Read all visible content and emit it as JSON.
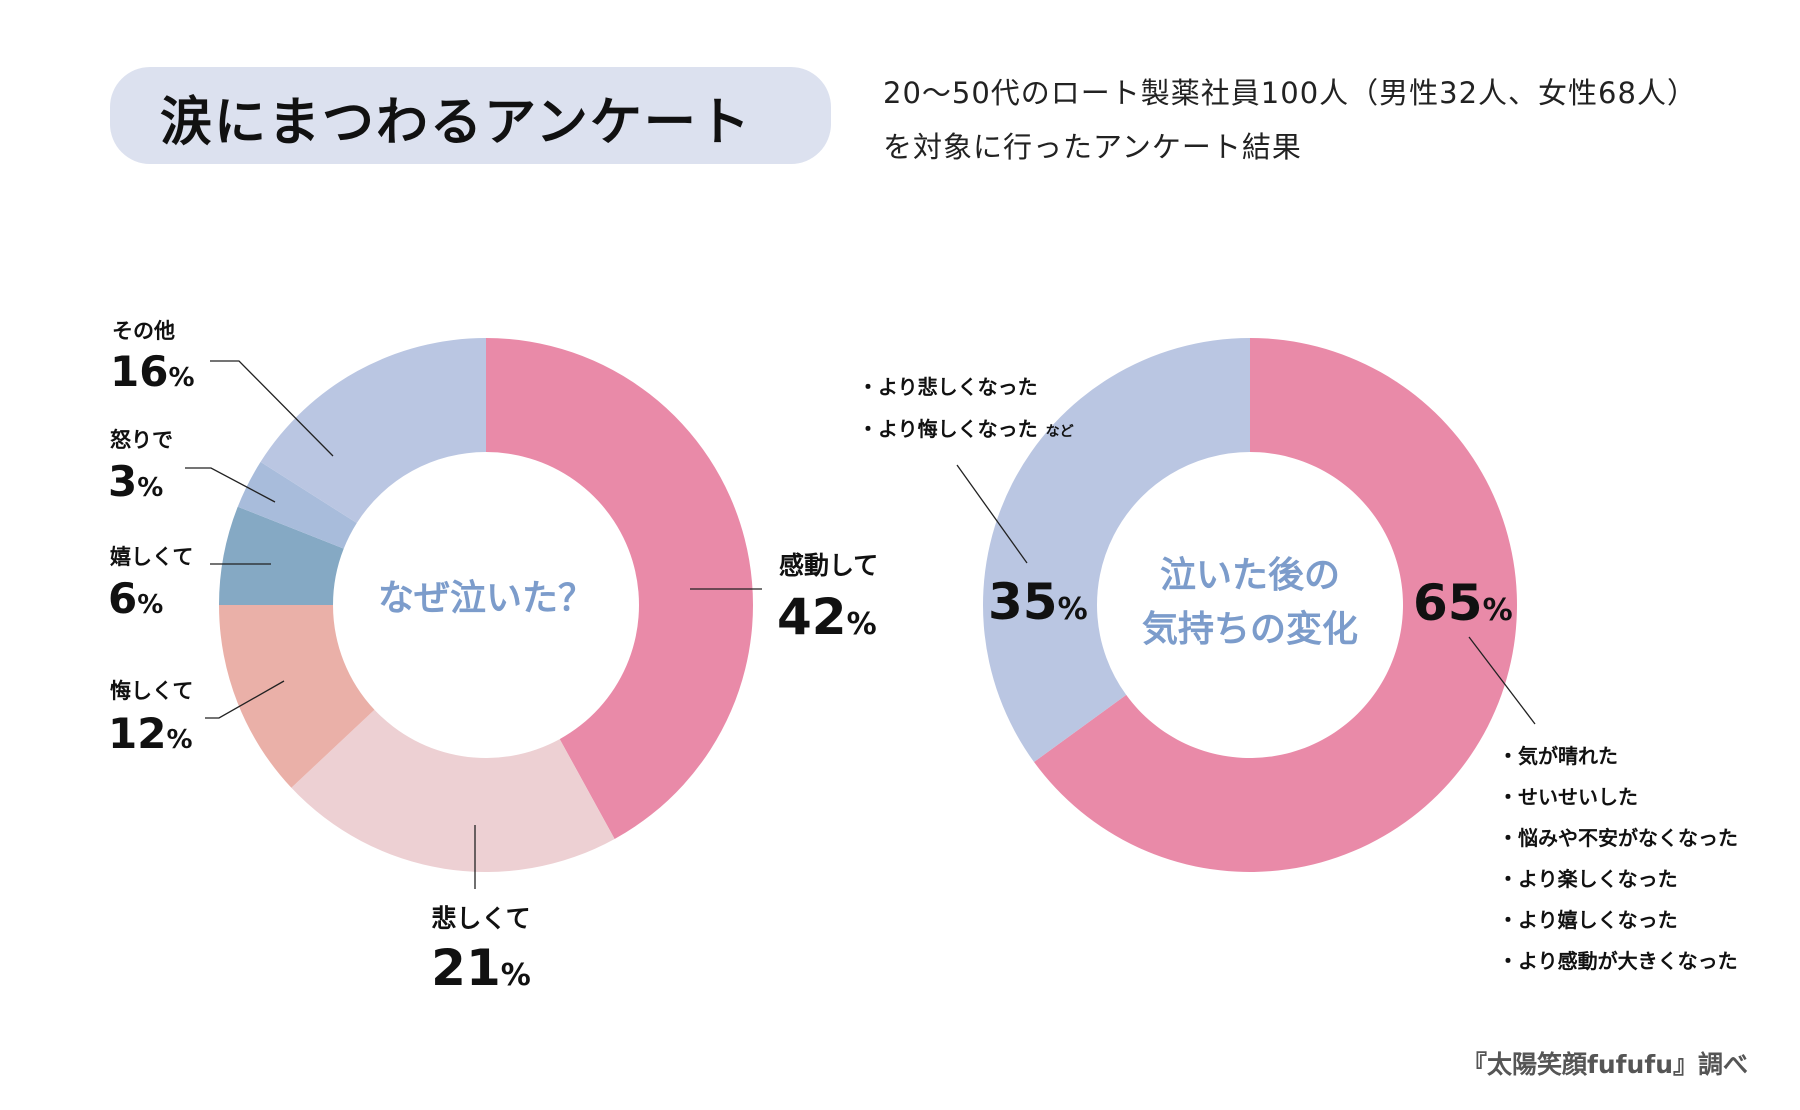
{
  "header": {
    "title": "涙にまつわるアンケート",
    "subtitle_line1": "20〜50代のロート製薬社員100人（男性32人、女性68人）",
    "subtitle_line2": "を対象に行ったアンケート結果"
  },
  "chart_data": [
    {
      "type": "pie",
      "variant": "donut",
      "title": "なぜ泣いた？",
      "unit": "%",
      "slices": [
        {
          "label": "感動して",
          "value": 42,
          "color": "#E98AA8"
        },
        {
          "label": "悲しくて",
          "value": 21,
          "color": "#EDD0D3"
        },
        {
          "label": "悔しくて",
          "value": 12,
          "color": "#EAB0A8"
        },
        {
          "label": "嬉しくて",
          "value": 6,
          "color": "#85A9C4"
        },
        {
          "label": "怒りで",
          "value": 3,
          "color": "#A8BCDB"
        },
        {
          "label": "その他",
          "value": 16,
          "color": "#BAC6E2"
        }
      ]
    },
    {
      "type": "pie",
      "variant": "donut",
      "title_line1": "泣いた後の",
      "title_line2": "気持ちの変化",
      "unit": "%",
      "slices": [
        {
          "value": 65,
          "color": "#E98AA8",
          "notes": [
            "・気が晴れた",
            "・せいせいした",
            "・悩みや不安がなくなった",
            "・より楽しくなった",
            "・より嬉しくなった",
            "・より感動が大きくなった"
          ]
        },
        {
          "value": 35,
          "color": "#BAC6E2",
          "notes": [
            "・より悲しくなった",
            "・より悔しくなった"
          ],
          "notes_suffix": "など"
        }
      ]
    }
  ],
  "footer": {
    "source": "『太陽笑顔fufufu』調べ"
  }
}
